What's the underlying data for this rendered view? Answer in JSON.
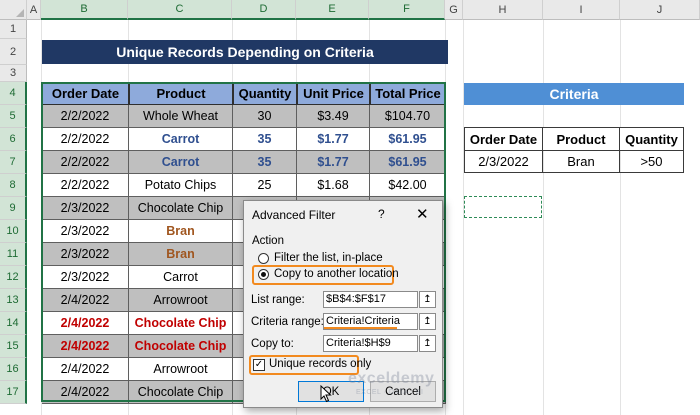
{
  "columns": [
    "A",
    "B",
    "C",
    "D",
    "E",
    "F",
    "G",
    "H",
    "I",
    "J"
  ],
  "rows": [
    "1",
    "2",
    "3",
    "4",
    "5",
    "6",
    "7",
    "8",
    "9",
    "10",
    "11",
    "12",
    "13",
    "14",
    "15",
    "16",
    "17"
  ],
  "title": "Unique Records Depending on Criteria",
  "table": {
    "headers": [
      "Order Date",
      "Product",
      "Quantity",
      "Unit Price",
      "Total Price"
    ],
    "rows": [
      {
        "date": "2/2/2022",
        "product": "Whole Wheat",
        "qty": "30",
        "unit": "$3.49",
        "total": "$104.70",
        "style": "normal"
      },
      {
        "date": "2/2/2022",
        "product": "Carrot",
        "qty": "35",
        "unit": "$1.77",
        "total": "$61.95",
        "style": "blue"
      },
      {
        "date": "2/2/2022",
        "product": "Carrot",
        "qty": "35",
        "unit": "$1.77",
        "total": "$61.95",
        "style": "blue"
      },
      {
        "date": "2/2/2022",
        "product": "Potato Chips",
        "qty": "25",
        "unit": "$1.68",
        "total": "$42.00",
        "style": "normal"
      },
      {
        "date": "2/3/2022",
        "product": "Chocolate Chip",
        "qty": "",
        "unit": "",
        "total": "",
        "style": "normal"
      },
      {
        "date": "2/3/2022",
        "product": "Bran",
        "qty": "",
        "unit": "",
        "total": "",
        "style": "brown"
      },
      {
        "date": "2/3/2022",
        "product": "Bran",
        "qty": "",
        "unit": "",
        "total": "",
        "style": "brown"
      },
      {
        "date": "2/3/2022",
        "product": "Carrot",
        "qty": "",
        "unit": "",
        "total": "",
        "style": "normal"
      },
      {
        "date": "2/4/2022",
        "product": "Arrowroot",
        "qty": "",
        "unit": "",
        "total": "",
        "style": "normal"
      },
      {
        "date": "2/4/2022",
        "product": "Chocolate Chip",
        "qty": "",
        "unit": "",
        "total": "",
        "style": "red"
      },
      {
        "date": "2/4/2022",
        "product": "Chocolate Chip",
        "qty": "",
        "unit": "",
        "total": "",
        "style": "red"
      },
      {
        "date": "2/4/2022",
        "product": "Arrowroot",
        "qty": "",
        "unit": "",
        "total": "",
        "style": "normal"
      },
      {
        "date": "2/4/2022",
        "product": "Chocolate Chip",
        "qty": "",
        "unit": "",
        "total": "",
        "style": "normal"
      }
    ]
  },
  "criteria": {
    "title": "Criteria",
    "headers": [
      "Order Date",
      "Product",
      "Quantity"
    ],
    "values": [
      "2/3/2022",
      "Bran",
      ">50"
    ]
  },
  "dialog": {
    "title": "Advanced Filter",
    "help": "?",
    "close": "✕",
    "action_label": "Action",
    "radio_filter": "Filter the list, in-place",
    "radio_copy": "Copy to another location",
    "list_range_label": "List range:",
    "list_range_value": "$B$4:$F$17",
    "criteria_range_label": "Criteria range:",
    "criteria_range_value": "Criteria!Criteria",
    "copy_to_label": "Copy to:",
    "copy_to_value": "Criteria!$H$9",
    "unique_label": "Unique records only",
    "ok_label": "OK",
    "cancel_label": "Cancel",
    "ref_icon": "collapse-dialog-icon"
  },
  "watermark": {
    "main": "exceldemy",
    "sub": "EXCEL · DATA · BI"
  },
  "colors": {
    "title_bg": "#203864",
    "header_bg": "#8eaadb",
    "criteria_bg": "#4f8fd5",
    "highlight": "#f28a1f"
  }
}
